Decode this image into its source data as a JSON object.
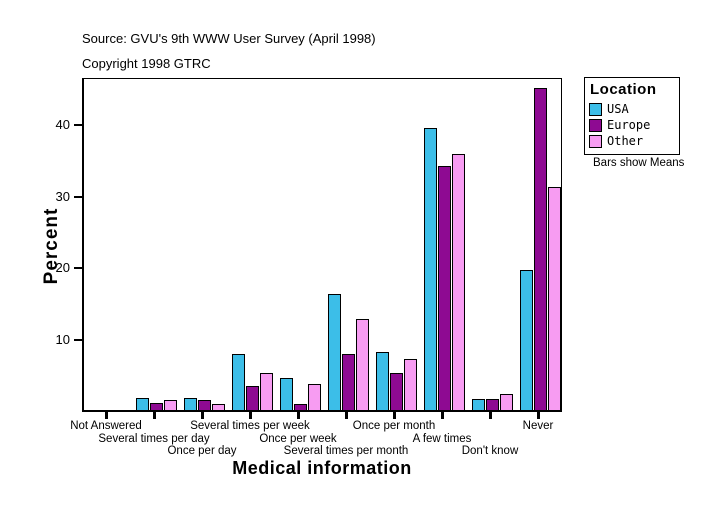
{
  "header": {
    "source_line": "Source: GVU's 9th WWW User Survey (April 1998)",
    "copyright_line": "Copyright 1998 GTRC"
  },
  "legend": {
    "title": "Location",
    "entries": [
      {
        "label": "USA",
        "color": "#3CBEE8"
      },
      {
        "label": "Europe",
        "color": "#8E0A92"
      },
      {
        "label": "Other",
        "color": "#F79CF2"
      }
    ],
    "note": "Bars show Means"
  },
  "chart_data": {
    "type": "bar",
    "title": "",
    "xlabel": "Medical information",
    "ylabel": "Percent",
    "ylim": [
      0,
      46.5
    ],
    "yticks": [
      10,
      20,
      30,
      40
    ],
    "grid": false,
    "legend_position": "top-right",
    "note": "Bars show Means",
    "categories": [
      "Not Answered",
      "Several times per day",
      "Once per day",
      "Several times per week",
      "Once per week",
      "Several times per month",
      "Once per month",
      "A few times",
      "Don't know",
      "Never"
    ],
    "series": [
      {
        "name": "USA",
        "color": "#3CBEE8",
        "values": [
          0,
          1.7,
          1.7,
          7.8,
          4.4,
          16.1,
          8.1,
          39.2,
          1.6,
          19.5
        ]
      },
      {
        "name": "Europe",
        "color": "#8E0A92",
        "values": [
          0,
          1.0,
          1.4,
          3.3,
          0.9,
          7.8,
          5.2,
          34.0,
          1.5,
          44.8
        ]
      },
      {
        "name": "Other",
        "color": "#F79CF2",
        "values": [
          0,
          1.4,
          0.9,
          5.2,
          3.6,
          12.7,
          7.1,
          35.7,
          2.2,
          31.1
        ]
      }
    ]
  }
}
